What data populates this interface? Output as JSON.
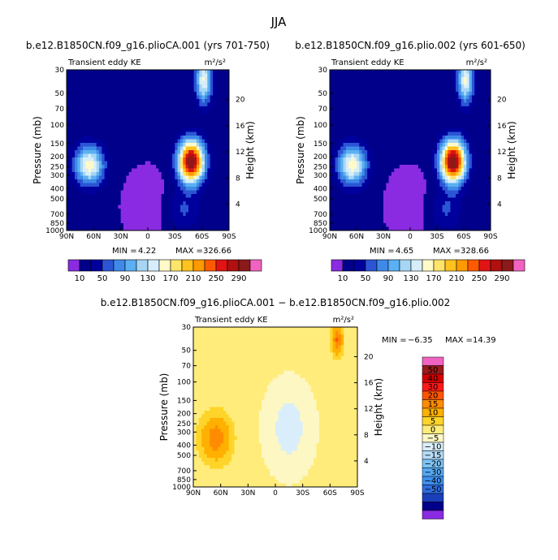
{
  "page_title": "JJA",
  "colors": {
    "levels": [
      "#8a2be2",
      "#00008b",
      "#00009c",
      "#2b55d4",
      "#3f8ae8",
      "#5ab0f2",
      "#a7d6f5",
      "#d6eefb",
      "#fffac8",
      "#ffe46b",
      "#ffc21e",
      "#ff9a00",
      "#ff5a00",
      "#e01414",
      "#b01010",
      "#8b1a1a",
      "#f063c0"
    ],
    "diff_levels": [
      "#8a2be2",
      "#00008b",
      "#1a3fb8",
      "#2f6ee0",
      "#3e8fef",
      "#55aaf5",
      "#7fc4f7",
      "#b5dcf8",
      "#d9eefa",
      "#fdf7c4",
      "#ffec7a",
      "#ffd42a",
      "#ffb000",
      "#ff8c00",
      "#ff5500",
      "#ff1a1a",
      "#d40000",
      "#9b1a1a",
      "#f063c0"
    ]
  },
  "chart_data": [
    {
      "type": "heatmap",
      "title": "b.e12.B1850CN.f09_g16.plioCA.001 (yrs 701-750)",
      "subtitle_left": "Transient eddy KE",
      "units": "m²/s²",
      "xlabel": "",
      "ylabel": "Pressure (mb)",
      "ylabel_right": "Height (km)",
      "x_ticks": [
        "90N",
        "60N",
        "30N",
        "0",
        "30S",
        "60S",
        "90S"
      ],
      "y_ticks": [
        "30",
        "50",
        "70",
        "100",
        "150",
        "200",
        "250",
        "300",
        "400",
        "500",
        "700",
        "850",
        "1000"
      ],
      "y_ticks_right": [
        "20",
        "16",
        "12",
        "8",
        "4"
      ],
      "min_label": "MIN =",
      "min_value": "4.22",
      "max_label": "MAX =",
      "max_value": "326.66",
      "colorbar_labels": [
        "10",
        "50",
        "90",
        "130",
        "170",
        "210",
        "250",
        "290"
      ]
    },
    {
      "type": "heatmap",
      "title": "b.e12.B1850CN.f09_g16.plio.002 (yrs 601-650)",
      "subtitle_left": "Transient eddy KE",
      "units": "m²/s²",
      "xlabel": "",
      "ylabel": "Pressure (mb)",
      "ylabel_right": "Height (km)",
      "x_ticks": [
        "90N",
        "60N",
        "30N",
        "0",
        "30S",
        "60S",
        "90S"
      ],
      "y_ticks": [
        "30",
        "50",
        "70",
        "100",
        "150",
        "200",
        "250",
        "300",
        "400",
        "500",
        "700",
        "850",
        "1000"
      ],
      "y_ticks_right": [
        "20",
        "16",
        "12",
        "8",
        "4"
      ],
      "min_label": "MIN =",
      "min_value": "4.65",
      "max_label": "MAX =",
      "max_value": "328.66",
      "colorbar_labels": [
        "10",
        "50",
        "90",
        "130",
        "170",
        "210",
        "250",
        "290"
      ]
    },
    {
      "type": "heatmap",
      "title": "b.e12.B1850CN.f09_g16.plioCA.001 − b.e12.B1850CN.f09_g16.plio.002",
      "subtitle_left": "Transient eddy KE",
      "units": "m²/s²",
      "xlabel": "",
      "ylabel": "Pressure (mb)",
      "ylabel_right": "Height (km)",
      "x_ticks": [
        "90N",
        "60N",
        "30N",
        "0",
        "30S",
        "60S",
        "90S"
      ],
      "y_ticks": [
        "30",
        "50",
        "70",
        "100",
        "150",
        "200",
        "250",
        "300",
        "400",
        "500",
        "700",
        "850",
        "1000"
      ],
      "y_ticks_right": [
        "20",
        "16",
        "12",
        "8",
        "4"
      ],
      "min_label": "MIN =",
      "min_value": "−6.35",
      "max_label": "MAX =",
      "max_value": "14.39",
      "colorbar_labels": [
        "50",
        "40",
        "30",
        "20",
        "15",
        "10",
        "5",
        "0",
        "−5",
        "−10",
        "−15",
        "−20",
        "−30",
        "−40",
        "−50"
      ]
    }
  ]
}
